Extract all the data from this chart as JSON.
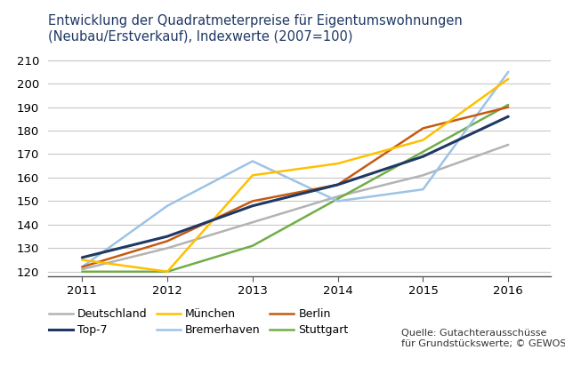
{
  "title": "Entwicklung der Quadratmeterpreise für Eigentumswohnungen\n(Neubau/Erstverkauf), Indexwerte (2007=100)",
  "years": [
    2011,
    2012,
    2013,
    2014,
    2015,
    2016
  ],
  "series": {
    "Deutschland": {
      "values": [
        121,
        130,
        141,
        152,
        161,
        174
      ],
      "color": "#b3b3b3",
      "linewidth": 1.8
    },
    "Top-7": {
      "values": [
        126,
        135,
        148,
        157,
        169,
        186
      ],
      "color": "#1f3864",
      "linewidth": 2.2
    },
    "München": {
      "values": [
        125,
        120,
        161,
        166,
        176,
        202
      ],
      "color": "#ffc000",
      "linewidth": 1.8
    },
    "Bremerhaven": {
      "values": [
        122,
        148,
        167,
        150,
        155,
        205
      ],
      "color": "#9dc3e6",
      "linewidth": 1.8
    },
    "Berlin": {
      "values": [
        122,
        133,
        150,
        157,
        181,
        190
      ],
      "color": "#c55a11",
      "linewidth": 1.8
    },
    "Stuttgart": {
      "values": [
        120,
        120,
        131,
        151,
        171,
        191
      ],
      "color": "#70ad47",
      "linewidth": 1.8
    }
  },
  "ylim": [
    118,
    213
  ],
  "yticks": [
    120,
    130,
    140,
    150,
    160,
    170,
    180,
    190,
    200,
    210
  ],
  "source_text": "Quelle: Gutachterausschüsse\nfür Grundstückswerte; © GEWOS",
  "title_color": "#1f3864",
  "title_fontsize": 10.5,
  "bg_color": "#ffffff",
  "legend_row1": [
    "Deutschland",
    "Top-7",
    "München"
  ],
  "legend_row2": [
    "Bremerhaven",
    "Berlin",
    "Stuttgart"
  ]
}
